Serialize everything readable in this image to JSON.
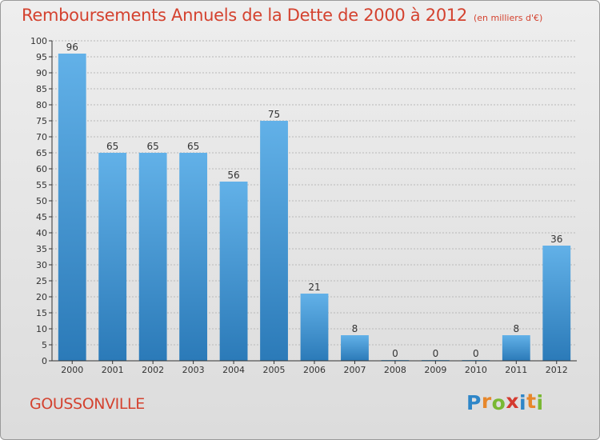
{
  "header": {
    "title": "Remboursements Annuels de la Dette de 2000 à 2012",
    "unit": "(en milliers d'€)"
  },
  "commune": "GOUSSONVILLE",
  "logo": {
    "text": "Proxiti",
    "letters": [
      "P",
      "r",
      "o",
      "x",
      "i",
      "t",
      "i"
    ],
    "colors": [
      "#2e86c8",
      "#e7872b",
      "#79b833",
      "#d43a2f",
      "#2e86c8",
      "#e7872b",
      "#79b833"
    ]
  },
  "colors": {
    "bar_top": "#62b1e8",
    "bar_bottom": "#2b7ab8",
    "title": "#d4422f",
    "axis": "#333333",
    "grid": "#b8b8b8"
  },
  "chart_data": {
    "type": "bar",
    "title": "Remboursements Annuels de la Dette de 2000 à 2012",
    "subtitle": "(en milliers d'€)",
    "xlabel": "",
    "ylabel": "",
    "categories": [
      "2000",
      "2001",
      "2002",
      "2003",
      "2004",
      "2005",
      "2006",
      "2007",
      "2008",
      "2009",
      "2010",
      "2011",
      "2012"
    ],
    "values": [
      96,
      65,
      65,
      65,
      56,
      75,
      21,
      8,
      0,
      0,
      0,
      8,
      36
    ],
    "ylim": [
      0,
      100
    ],
    "yticks": [
      0,
      5,
      10,
      15,
      20,
      25,
      30,
      35,
      40,
      45,
      50,
      55,
      60,
      65,
      70,
      75,
      80,
      85,
      90,
      95,
      100
    ],
    "grid": true,
    "legend": "none"
  }
}
